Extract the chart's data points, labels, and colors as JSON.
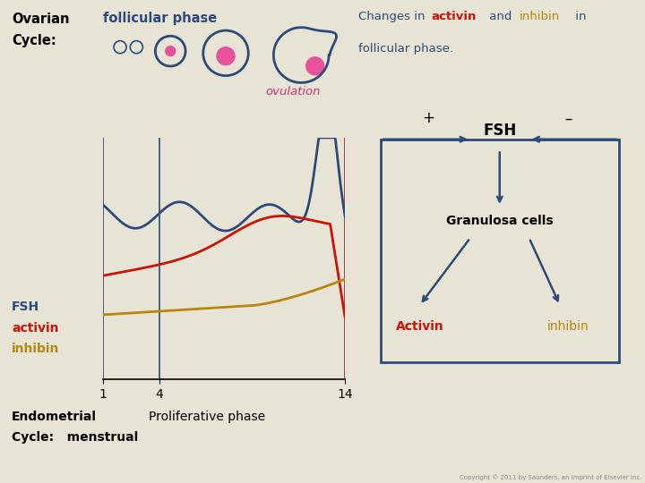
{
  "bg_color": "#e8e4d5",
  "dark_blue": "#2e4a7a",
  "red_color": "#cc1100",
  "gold_color": "#b8860b",
  "pink_color": "#e8529a",
  "ovulation_line_color": "#993344",
  "fsh_label": "FSH",
  "activin_label": "activin",
  "inhibin_label": "inhibin",
  "x_ticks": [
    1,
    4,
    14
  ],
  "copyright": "Copyright © 2011 by Saunders, an imprint of Elsevier Inc."
}
